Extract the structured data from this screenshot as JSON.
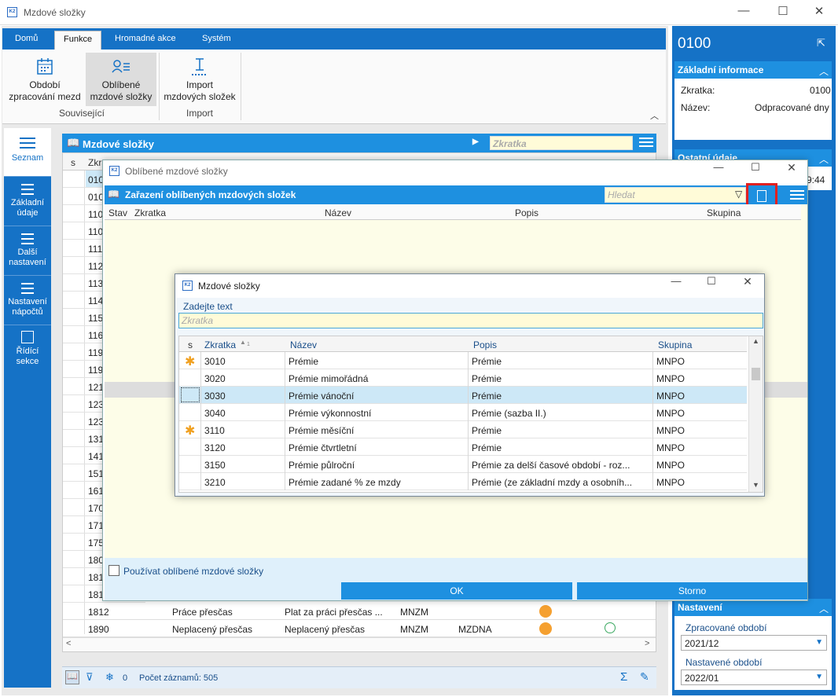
{
  "window": {
    "title": "Mzdové složky"
  },
  "ribbon": {
    "tabs": [
      "Domů",
      "Funkce",
      "Hromadné akce",
      "Systém"
    ],
    "buttons": [
      {
        "line1": "Období",
        "line2": "zpracování mezd"
      },
      {
        "line1": "Oblíbené",
        "line2": "mzdové složky"
      },
      {
        "line1": "Import",
        "line2": "mzdových složek"
      }
    ],
    "groups": [
      "Související",
      "Import"
    ]
  },
  "nav": [
    "Seznam",
    "Základní údaje",
    "Další nastavení",
    "Nastavení nápočtů",
    "Řídící sekce"
  ],
  "grid": {
    "title": "Mzdové složky",
    "search_placeholder": "Zkratka",
    "col_s": "s",
    "col_code": "Zkrat",
    "codes": [
      "010",
      "010",
      "110",
      "110",
      "111",
      "112",
      "113",
      "114",
      "115",
      "116",
      "119",
      "119",
      "121",
      "123",
      "123",
      "131",
      "141",
      "151",
      "161",
      "170",
      "171",
      "175",
      "180",
      "181",
      "181"
    ],
    "row1812": [
      "1812",
      "Práce přesčas",
      "Plat za práci přesčas ...",
      "MNZM"
    ],
    "row1890": [
      "1890",
      "Neplacený přesčas",
      "Neplacený přesčas",
      "MNZM",
      "MZDNA"
    ],
    "status": {
      "count_zero": "0",
      "records": "Počet záznamů: 505"
    }
  },
  "right": {
    "code": "0100",
    "section1": "Základní informace",
    "fields": [
      {
        "label": "Zkratka:",
        "value": "0100"
      },
      {
        "label": "Název:",
        "value": "Odpracované dny"
      }
    ],
    "section2": "Ostatní údaje",
    "time": "9:44",
    "section3": "Nastavení",
    "processed_label": "Zpracované období",
    "processed_value": "2021/12",
    "set_label": "Nastavené období",
    "set_value": "2022/01"
  },
  "dialog1": {
    "title": "Oblíbené mzdové složky",
    "header": "Zařazení oblíbených mzdových složek",
    "search_placeholder": "Hledat",
    "cols": [
      "Stav",
      "Zkratka",
      "Název",
      "Popis",
      "Skupina"
    ],
    "checkbox_label": "Používat oblíbené mzdové složky",
    "ok": "OK",
    "cancel": "Storno"
  },
  "dialog2": {
    "title": "Mzdové složky",
    "prompt": "Zadejte text",
    "input_placeholder": "Zkratka",
    "cols": [
      "s",
      "Zkratka",
      "Název",
      "Popis",
      "Skupina"
    ],
    "sort_marker": "1",
    "rows": [
      {
        "star": true,
        "code": "3010",
        "name": "Prémie",
        "desc": "Prémie",
        "group": "MNPO"
      },
      {
        "star": false,
        "code": "3020",
        "name": "Prémie mimořádná",
        "desc": "Prémie",
        "group": "MNPO"
      },
      {
        "star": false,
        "code": "3030",
        "name": "Prémie vánoční",
        "desc": "Prémie",
        "group": "MNPO"
      },
      {
        "star": false,
        "code": "3040",
        "name": "Prémie výkonnostní",
        "desc": "Prémie (sazba II.)",
        "group": "MNPO"
      },
      {
        "star": true,
        "code": "3110",
        "name": "Prémie měsíční",
        "desc": "Prémie",
        "group": "MNPO"
      },
      {
        "star": false,
        "code": "3120",
        "name": "Prémie čtvrtletní",
        "desc": "Prémie",
        "group": "MNPO"
      },
      {
        "star": false,
        "code": "3150",
        "name": "Prémie půlroční",
        "desc": "Prémie za delší časové období - roz...",
        "group": "MNPO"
      },
      {
        "star": false,
        "code": "3210",
        "name": "Prémie zadané % ze mzdy",
        "desc": "Prémie (ze základní mzdy a osobníh...",
        "group": "MNPO"
      }
    ],
    "colors": {
      "selected_row": "#cde8f7",
      "star": "#f0a020"
    }
  }
}
